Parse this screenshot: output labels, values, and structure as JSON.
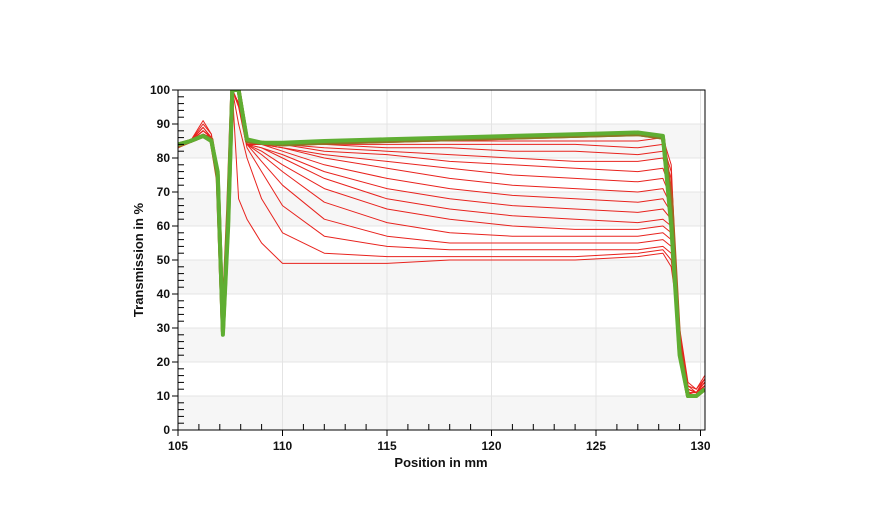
{
  "chart_data": {
    "type": "line",
    "title": "",
    "xlabel": "Position in mm",
    "ylabel": "Transmission in %",
    "xlim": [
      105,
      130.2
    ],
    "ylim": [
      0,
      100
    ],
    "x_ticks": [
      105,
      110,
      115,
      120,
      125,
      130
    ],
    "x_tick_labels": [
      "105",
      "110",
      "115",
      "120",
      "125",
      "130"
    ],
    "y_ticks": [
      0,
      10,
      20,
      30,
      40,
      50,
      60,
      70,
      80,
      90,
      100
    ],
    "y_tick_labels": [
      "0",
      "10",
      "20",
      "30",
      "40",
      "50",
      "60",
      "70",
      "80",
      "90",
      "100"
    ],
    "grid": true,
    "legend": "none",
    "colors": {
      "early": "#e8231e",
      "mid": "#b8561e",
      "late": "#5fae32"
    },
    "x": [
      105,
      105.6,
      106.2,
      106.6,
      106.9,
      107.15,
      107.4,
      107.6,
      107.9,
      108.3,
      109,
      110,
      112,
      115,
      118,
      121,
      124,
      127,
      128.2,
      128.6,
      129.0,
      129.4,
      129.8,
      130.2
    ],
    "series": [
      {
        "color": "#e8231e",
        "values": [
          83,
          85,
          91,
          87,
          72,
          32,
          70,
          100,
          68,
          62,
          55,
          49,
          49,
          49,
          50,
          50,
          50,
          51,
          52,
          48,
          30,
          14,
          12,
          16
        ]
      },
      {
        "color": "#e8231e",
        "values": [
          83,
          85,
          90,
          87,
          72,
          32,
          70,
          100,
          90,
          80,
          68,
          58,
          52,
          51,
          51,
          51,
          51,
          52,
          53,
          50,
          29,
          13,
          12,
          15
        ]
      },
      {
        "color": "#e8231e",
        "values": [
          83,
          85,
          89,
          86,
          72,
          31,
          70,
          100,
          95,
          83,
          76,
          66,
          57,
          54,
          53,
          53,
          53,
          53,
          54,
          52,
          29,
          13,
          11,
          15
        ]
      },
      {
        "color": "#e8231e",
        "values": [
          83,
          85,
          89,
          86,
          72,
          31,
          70,
          100,
          96,
          84,
          79,
          72,
          62,
          57,
          55,
          55,
          55,
          55,
          56,
          54,
          29,
          12,
          11,
          15
        ]
      },
      {
        "color": "#e8231e",
        "values": [
          83,
          85,
          88,
          86,
          72,
          31,
          70,
          100,
          96,
          84,
          81,
          76,
          67,
          61,
          58,
          57,
          57,
          57,
          58,
          56,
          28,
          12,
          11,
          14
        ]
      },
      {
        "color": "#e8231e",
        "values": [
          83,
          85,
          88,
          86,
          72,
          31,
          70,
          100,
          96,
          84,
          82,
          78,
          71,
          65,
          62,
          60,
          59,
          59,
          60,
          58,
          28,
          12,
          11,
          14
        ]
      },
      {
        "color": "#e8231e",
        "values": [
          83,
          85,
          88,
          86,
          72,
          31,
          70,
          100,
          96,
          84,
          83,
          80,
          74,
          68,
          65,
          63,
          62,
          61,
          62,
          60,
          28,
          12,
          11,
          14
        ]
      },
      {
        "color": "#e8231e",
        "values": [
          83,
          85,
          88,
          86,
          72,
          30,
          70,
          100,
          96,
          84,
          83,
          81,
          76,
          71,
          68,
          66,
          65,
          64,
          65,
          62,
          27,
          12,
          11,
          14
        ]
      },
      {
        "color": "#e8231e",
        "values": [
          83,
          85,
          87,
          86,
          72,
          30,
          70,
          100,
          96,
          84,
          84,
          82,
          78,
          74,
          71,
          69,
          68,
          67,
          68,
          64,
          27,
          12,
          11,
          13
        ]
      },
      {
        "color": "#e8231e",
        "values": [
          83,
          85,
          87,
          86,
          72,
          30,
          70,
          100,
          96,
          84,
          84,
          83,
          80,
          77,
          74,
          72,
          71,
          70,
          71,
          66,
          27,
          11,
          11,
          13
        ]
      },
      {
        "color": "#e8231e",
        "values": [
          83,
          85,
          87,
          86,
          72,
          30,
          70,
          100,
          96,
          84,
          84,
          83,
          81,
          79,
          77,
          75,
          74,
          73,
          74,
          68,
          26,
          11,
          11,
          13
        ]
      },
      {
        "color": "#e8231e",
        "values": [
          83,
          85,
          87,
          86,
          72,
          30,
          70,
          100,
          96,
          84,
          84,
          84,
          82,
          81,
          79,
          78,
          77,
          76,
          77,
          70,
          26,
          11,
          10,
          13
        ]
      },
      {
        "color": "#e8231e",
        "values": [
          83,
          85,
          87,
          86,
          72,
          30,
          70,
          100,
          96,
          84,
          84,
          84,
          83,
          82,
          81,
          80,
          79,
          79,
          80,
          72,
          26,
          11,
          10,
          12
        ]
      },
      {
        "color": "#e8231e",
        "values": [
          83,
          85,
          87,
          86,
          72,
          30,
          70,
          100,
          96,
          84,
          84,
          84,
          84,
          83,
          83,
          82,
          82,
          81,
          82,
          74,
          25,
          11,
          10,
          12
        ]
      },
      {
        "color": "#e8231e",
        "values": [
          83,
          85,
          87,
          86,
          72,
          30,
          70,
          100,
          96,
          84,
          84,
          84,
          84,
          84,
          84,
          84,
          84,
          83,
          84,
          76,
          25,
          10,
          10,
          12
        ]
      },
      {
        "color": "#e8231e",
        "values": [
          83,
          85,
          87,
          86,
          72,
          30,
          70,
          100,
          96,
          84,
          84,
          84,
          84,
          85,
          85,
          85,
          85,
          85,
          86,
          78,
          24,
          10,
          10,
          12
        ]
      },
      {
        "color": "#b8561e",
        "values": [
          83.5,
          85,
          86.5,
          85.5,
          74,
          29,
          65,
          100,
          100,
          85,
          84.5,
          84,
          84.5,
          85,
          85.5,
          86,
          86.5,
          87,
          86,
          68,
          24,
          10,
          10,
          12
        ]
      },
      {
        "color": "#8a7a24",
        "values": [
          84,
          85,
          86.5,
          85,
          75,
          29,
          62,
          100,
          100,
          85,
          84.5,
          84,
          84.5,
          85,
          85.5,
          86,
          86.5,
          87,
          86,
          64,
          23,
          10,
          10,
          12
        ]
      },
      {
        "color": "#5fae32",
        "values": [
          84,
          85,
          86.5,
          85,
          76,
          28,
          60,
          100,
          100,
          85.5,
          84.5,
          84.5,
          85,
          85.5,
          86,
          86.5,
          87,
          87.5,
          86.5,
          60,
          22,
          10,
          10,
          12
        ]
      }
    ]
  }
}
